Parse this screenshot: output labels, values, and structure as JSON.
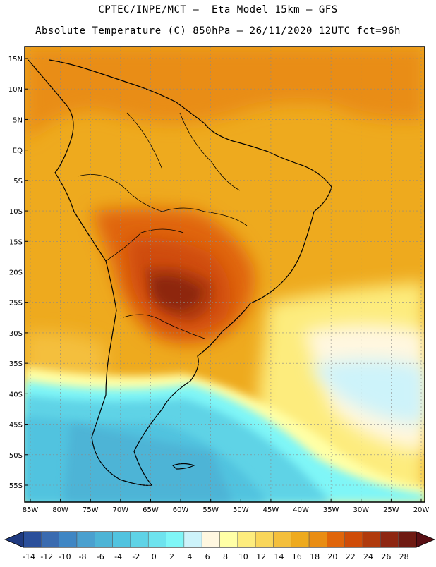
{
  "header": {
    "line1": "CPTEC/INPE/MCT –  Eta Model 15km – GFS",
    "line2": "Absolute Temperature (C) 850hPa – 26/11/2020 12UTC fct=96h"
  },
  "map": {
    "lat_labels": [
      "15N",
      "10N",
      "5N",
      "EQ",
      "5S",
      "10S",
      "15S",
      "20S",
      "25S",
      "30S",
      "35S",
      "40S",
      "45S",
      "50S",
      "55S"
    ],
    "lon_labels": [
      "85W",
      "80W",
      "75W",
      "70W",
      "65W",
      "60W",
      "55W",
      "50W",
      "45W",
      "40W",
      "35W",
      "30W",
      "25W",
      "20W"
    ]
  },
  "colorbar": {
    "labels": [
      "-14",
      "-12",
      "-10",
      "-8",
      "-6",
      "-4",
      "-2",
      "0",
      "2",
      "4",
      "6",
      "8",
      "10",
      "12",
      "14",
      "16",
      "18",
      "20",
      "22",
      "24",
      "26",
      "28"
    ],
    "colors": [
      "#2a4f9b",
      "#3a6bb0",
      "#3f86c4",
      "#4aa0cf",
      "#4db4d6",
      "#51c3df",
      "#5fd3e6",
      "#6ee3ee",
      "#7ff6f7",
      "#cdf3fa",
      "#fff7e0",
      "#ffffa6",
      "#fdec7d",
      "#f9d65a",
      "#f4bf3c",
      "#eeaa1e",
      "#e98d13",
      "#e0650a",
      "#cf4c08",
      "#b03a0c",
      "#8e2611",
      "#6f1a12"
    ],
    "left_arrow_color": "#1f3a80",
    "right_arrow_color": "#5a0f14"
  }
}
